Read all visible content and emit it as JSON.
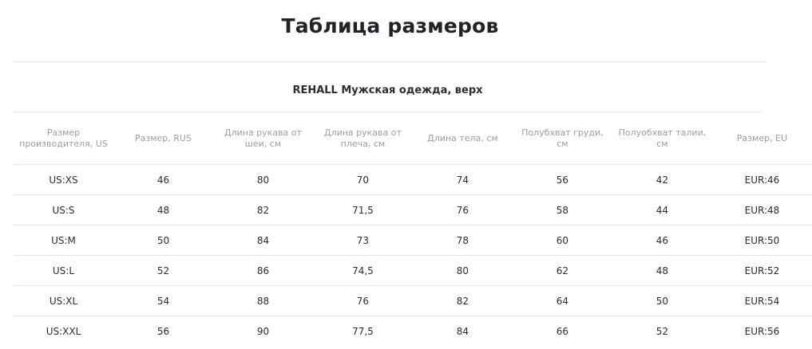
{
  "page_title": "Таблица размеров",
  "table": {
    "title": "REHALL Мужская одежда, верх",
    "columns": [
      "Размер производителя, US",
      "Размер, RUS",
      "Длина рукава от шеи, см",
      "Длина рукава от плеча, см",
      "Длина тела, см",
      "Полубхват груди, см",
      "Полуобхват талии, см",
      "Размер, EU"
    ],
    "rows": [
      [
        "US:XS",
        "46",
        "80",
        "70",
        "74",
        "56",
        "42",
        "EUR:46"
      ],
      [
        "US:S",
        "48",
        "82",
        "71,5",
        "76",
        "58",
        "44",
        "EUR:48"
      ],
      [
        "US:M",
        "50",
        "84",
        "73",
        "78",
        "60",
        "46",
        "EUR:50"
      ],
      [
        "US:L",
        "52",
        "86",
        "74,5",
        "80",
        "62",
        "48",
        "EUR:52"
      ],
      [
        "US:XL",
        "54",
        "88",
        "76",
        "82",
        "64",
        "50",
        "EUR:54"
      ],
      [
        "US:XXL",
        "56",
        "90",
        "77,5",
        "84",
        "66",
        "52",
        "EUR:56"
      ]
    ]
  },
  "colors": {
    "text": "#2a2e33",
    "header_text": "#9a9ea4",
    "divider": "#e6e6e6",
    "background": "#ffffff"
  }
}
